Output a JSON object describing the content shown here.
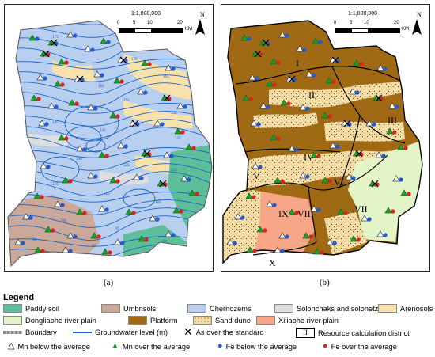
{
  "panel_a": {
    "scale_ratio": "1:1,000,000",
    "scale_ticks": [
      "0",
      "5",
      "10",
      "20"
    ],
    "scale_unit": "KM",
    "north": "N",
    "caption": "(a)",
    "contour_labels": [
      "175",
      "170",
      "165",
      "160",
      "155",
      "150",
      "145",
      "140",
      "135",
      "130",
      "125",
      "120",
      "115",
      "110",
      "105",
      "100",
      "95",
      "90",
      "85",
      "80"
    ]
  },
  "panel_b": {
    "scale_ratio": "1:1,000,000",
    "scale_ticks": [
      "0",
      "5",
      "10",
      "20"
    ],
    "scale_unit": "KM",
    "north": "N",
    "caption": "(b)",
    "district_labels": [
      "I",
      "II",
      "III",
      "IV",
      "V",
      "VI",
      "VII",
      "VIII",
      "IX",
      "X"
    ]
  },
  "legend": {
    "title": "Legend",
    "soils": [
      {
        "label": "Paddy soil",
        "color": "#5dbf9a"
      },
      {
        "label": "Umbrisols",
        "color": "#caa89a"
      },
      {
        "label": "Chernozems",
        "color": "#b9cff0"
      },
      {
        "label": "Solonchaks and solonetzes",
        "color": "#dedede"
      },
      {
        "label": "Arenosols",
        "color": "#f8e2ab"
      }
    ],
    "plains": [
      {
        "label": "Dongliaohe river plain",
        "color": "#e3f5c6"
      },
      {
        "label": "Platform",
        "color": "#a06a14"
      },
      {
        "label": "Sand dune",
        "color": "#f3dca6"
      },
      {
        "label": "Xiliaohe river plain",
        "color": "#f7a787"
      }
    ],
    "lines": {
      "boundary": "Boundary",
      "groundwater": "Groundwater level (m)",
      "over_standard": "As over the standard",
      "district_symbol": "II",
      "district": "Resource calculation district"
    },
    "points": [
      {
        "label": "Mn below the average",
        "symbol": "open-triangle-icon"
      },
      {
        "label": "Mn over the average",
        "symbol": "green-triangle-icon",
        "color": "#1e9e2a"
      },
      {
        "label": "Fe below the average",
        "symbol": "blue-dot-icon",
        "color": "#1f5bd6"
      },
      {
        "label": "Fe over the average",
        "symbol": "red-dot-icon",
        "color": "#e0201b"
      }
    ]
  }
}
